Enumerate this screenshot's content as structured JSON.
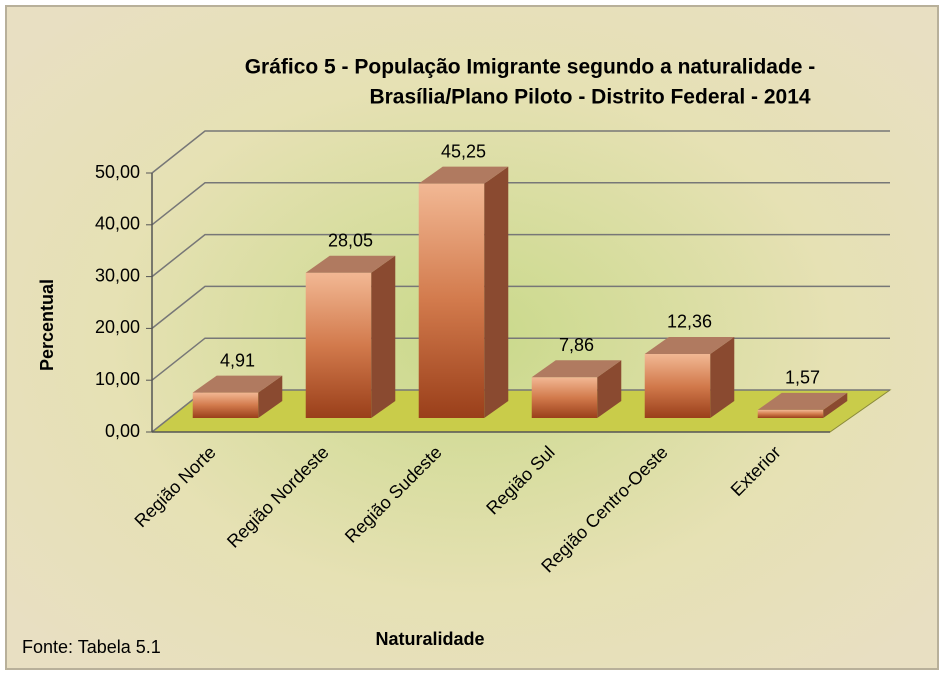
{
  "chart_data": {
    "type": "bar3d",
    "title": [
      "Gráfico 5 - População Imigrante segundo a naturalidade -",
      "Brasília/Plano Piloto - Distrito Federal - 2014"
    ],
    "x_label": "Naturalidade",
    "y_label": "Percentual",
    "source": "Fonte: Tabela 5.1",
    "categories": [
      "Região Norte",
      "Região Nordeste",
      "Região Sudeste",
      "Região Sul",
      "Região Centro-Oeste",
      "Exterior"
    ],
    "values": [
      4.91,
      28.05,
      45.25,
      7.86,
      12.36,
      1.57
    ],
    "value_labels": [
      "4,91",
      "28,05",
      "45,25",
      "7,86",
      "12,36",
      "1,57"
    ],
    "color": "#c8693c",
    "ylim": [
      0,
      50
    ],
    "yticks": [
      {
        "value": 0,
        "label": "0,00"
      },
      {
        "value": 10,
        "label": "10,00"
      },
      {
        "value": 20,
        "label": "20,00"
      },
      {
        "value": 30,
        "label": "30,00"
      },
      {
        "value": 40,
        "label": "40,00"
      },
      {
        "value": 50,
        "label": "50,00"
      }
    ],
    "grid": true
  }
}
